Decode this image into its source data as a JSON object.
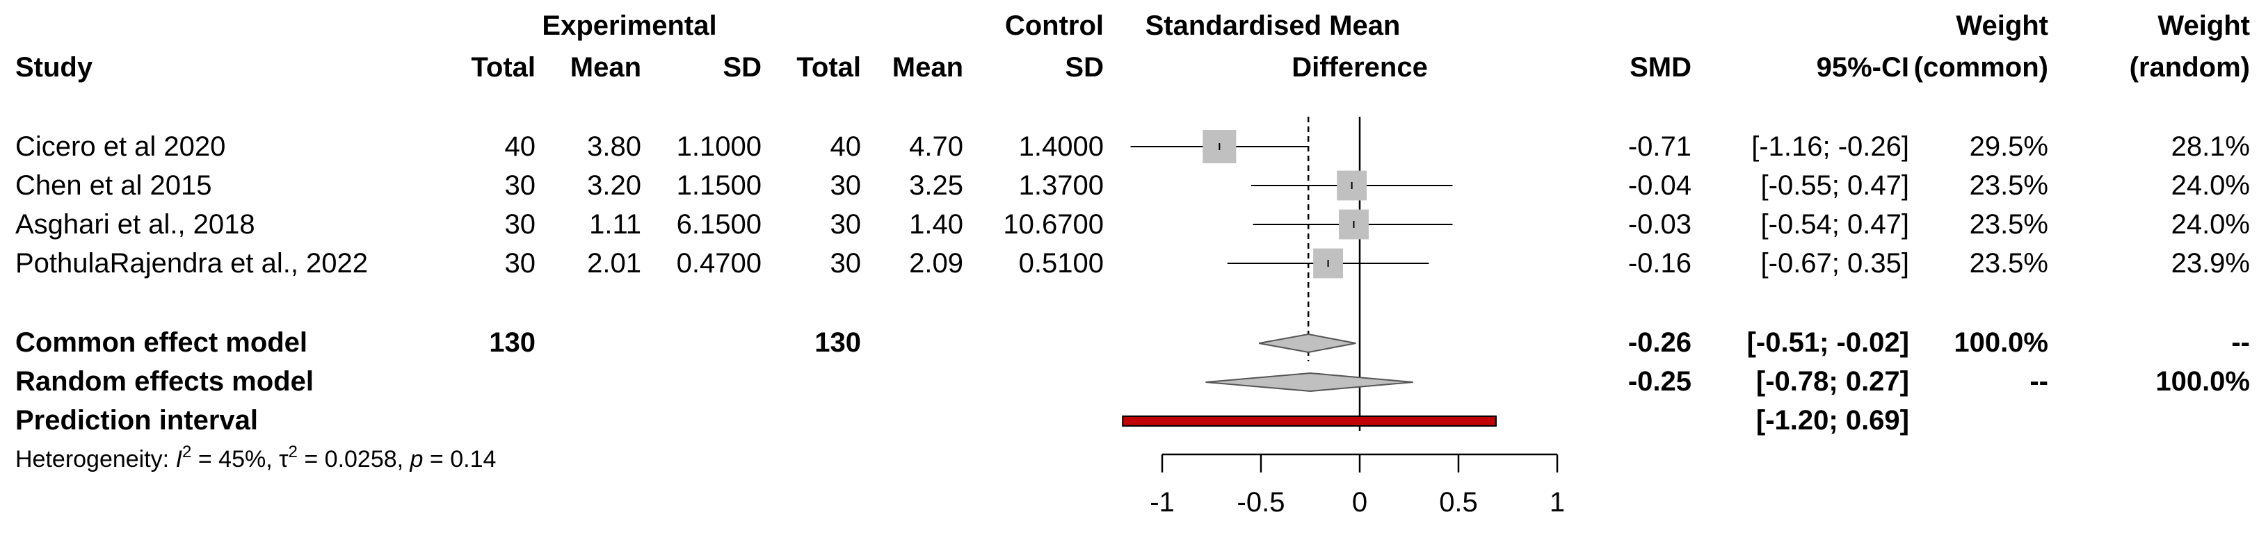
{
  "headers": {
    "study": "Study",
    "experimental": "Experimental",
    "control": "Control",
    "e_total": "Total",
    "e_mean": "Mean",
    "e_sd": "SD",
    "c_total": "Total",
    "c_mean": "Mean",
    "c_sd": "SD",
    "smd_title_line1": "Standardised Mean",
    "smd_title_line2": "Difference",
    "smd": "SMD",
    "ci": "95%-CI",
    "weight_common_line1": "Weight",
    "weight_common_line2": "(common)",
    "weight_random_line1": "Weight",
    "weight_random_line2": "(random)"
  },
  "studies": [
    {
      "study": "Cicero et al 2020",
      "e_total": "40",
      "e_mean": "3.80",
      "e_sd": "1.1000",
      "c_total": "40",
      "c_mean": "4.70",
      "c_sd": "1.4000",
      "smd": "-0.71",
      "ci": "[-1.16; -0.26]",
      "w_common": "29.5%",
      "w_random": "28.1%"
    },
    {
      "study": "Chen et al 2015",
      "e_total": "30",
      "e_mean": "3.20",
      "e_sd": "1.1500",
      "c_total": "30",
      "c_mean": "3.25",
      "c_sd": "1.3700",
      "smd": "-0.04",
      "ci": "[-0.55; 0.47]",
      "w_common": "23.5%",
      "w_random": "24.0%"
    },
    {
      "study": "Asghari et al., 2018",
      "e_total": "30",
      "e_mean": "1.11",
      "e_sd": "6.1500",
      "c_total": "30",
      "c_mean": "1.40",
      "c_sd": "10.6700",
      "smd": "-0.03",
      "ci": "[-0.54; 0.47]",
      "w_common": "23.5%",
      "w_random": "24.0%"
    },
    {
      "study": "PothulaRajendra et al., 2022",
      "e_total": "30",
      "e_mean": "2.01",
      "e_sd": "0.4700",
      "c_total": "30",
      "c_mean": "2.09",
      "c_sd": "0.5100",
      "smd": "-0.16",
      "ci": "[-0.67; 0.35]",
      "w_common": "23.5%",
      "w_random": "23.9%"
    }
  ],
  "summary": {
    "common": {
      "label": "Common effect model",
      "e_total": "130",
      "c_total": "130",
      "smd": "-0.26",
      "ci": "[-0.51; -0.02]",
      "w_common": "100.0%",
      "w_random": "--"
    },
    "random": {
      "label": "Random effects model",
      "smd": "-0.25",
      "ci": "[-0.78; 0.27]",
      "w_common": "--",
      "w_random": "100.0%"
    },
    "prediction": {
      "label": "Prediction interval",
      "ci": "[-1.20; 0.69]"
    }
  },
  "heterogeneity": {
    "prefix": "Heterogeneity: ",
    "i2_symbol": "I",
    "i2_sup": "2",
    "i2_value": " = 45%, ",
    "tau_symbol": "τ",
    "tau_sup": "2",
    "tau_value": " = 0.0258, ",
    "p_symbol": "p",
    "p_value": " = 0.14"
  },
  "chart_data": {
    "type": "forest",
    "measure": "SMD",
    "xlim": [
      -1,
      1
    ],
    "ticks": [
      "-1",
      "-0.5",
      "0",
      "0.5",
      "1"
    ],
    "tick_values": [
      -1,
      -0.5,
      0,
      0.5,
      1
    ],
    "null_value": 0,
    "common_effect_reference": -0.26,
    "studies": [
      {
        "study": "Cicero et al 2020",
        "smd": -0.71,
        "lower": -1.16,
        "upper": -0.26,
        "weight_common": 29.5
      },
      {
        "study": "Chen et al 2015",
        "smd": -0.04,
        "lower": -0.55,
        "upper": 0.47,
        "weight_common": 23.5
      },
      {
        "study": "Asghari et al., 2018",
        "smd": -0.03,
        "lower": -0.54,
        "upper": 0.47,
        "weight_common": 23.5
      },
      {
        "study": "PothulaRajendra et al., 2022",
        "smd": -0.16,
        "lower": -0.67,
        "upper": 0.35,
        "weight_common": 23.5
      }
    ],
    "common": {
      "smd": -0.26,
      "lower": -0.51,
      "upper": -0.02
    },
    "random": {
      "smd": -0.25,
      "lower": -0.78,
      "upper": 0.27
    },
    "prediction": {
      "lower": -1.2,
      "upper": 0.69
    },
    "colors": {
      "square": "#c0c0c0",
      "diamond": "#c0c0c0",
      "prediction": "#c00000",
      "line": "#000000"
    }
  }
}
